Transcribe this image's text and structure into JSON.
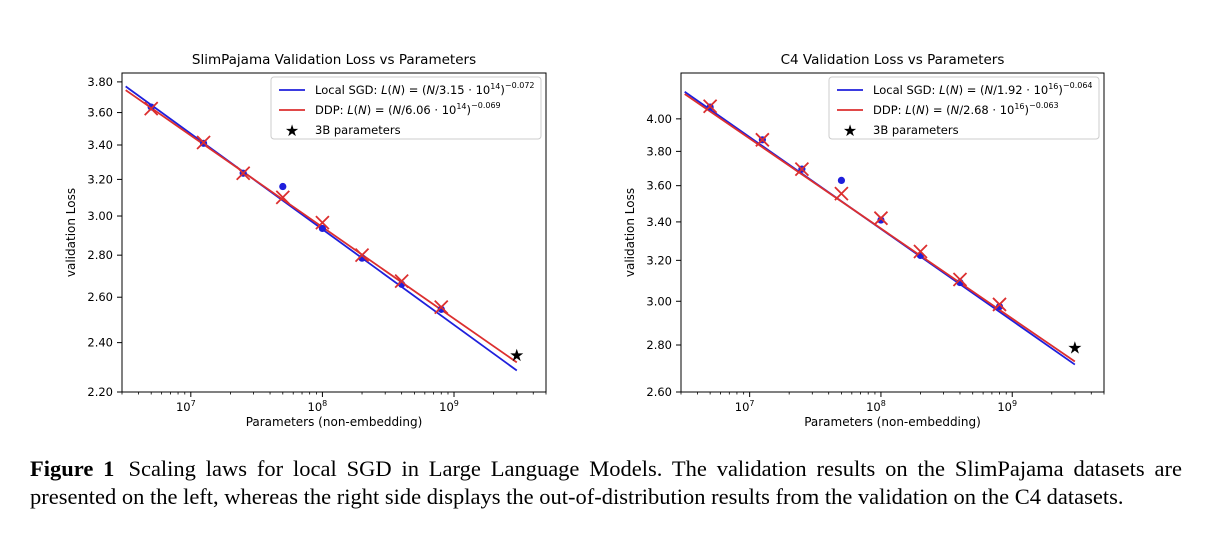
{
  "chart_data": [
    {
      "type": "line",
      "title": "SlimPajama Validation Loss vs Parameters",
      "xlabel": "Parameters (non-embedding)",
      "ylabel": "validation Loss",
      "xscale": "log",
      "yscale": "log",
      "xlim": [
        3000000,
        5000000000
      ],
      "ylim": [
        2.2,
        3.86
      ],
      "x_ticks": [
        10000000,
        100000000,
        1000000000
      ],
      "x_tick_labels": [
        {
          "base": "10",
          "exp": "7"
        },
        {
          "base": "10",
          "exp": "8"
        },
        {
          "base": "10",
          "exp": "9"
        }
      ],
      "y_ticks": [
        2.2,
        2.4,
        2.6,
        2.8,
        3.0,
        3.2,
        3.4,
        3.6,
        3.8
      ],
      "y_tick_labels": [
        "2.20",
        "2.40",
        "2.60",
        "2.80",
        "3.00",
        "3.20",
        "3.40",
        "3.60",
        "3.80"
      ],
      "grid": false,
      "legend_position": "top-right",
      "fits": [
        {
          "name": "Local SGD",
          "color": "#1f1fdc",
          "x_range": [
            3200000,
            3000000000
          ],
          "y_range": [
            3.77,
            2.285
          ]
        },
        {
          "name": "DDP",
          "color": "#dc2f2f",
          "x_range": [
            3200000,
            3000000000
          ],
          "y_range": [
            3.745,
            2.318
          ]
        }
      ],
      "series": [
        {
          "name": "Local SGD",
          "marker": "dot",
          "color": "#1f1fdc",
          "x": [
            5000000,
            12500000,
            25000000,
            50000000,
            100000000,
            200000000,
            400000000,
            800000000
          ],
          "y": [
            3.635,
            3.41,
            3.235,
            3.16,
            2.935,
            2.785,
            2.66,
            2.545
          ]
        },
        {
          "name": "DDP",
          "marker": "x",
          "color": "#dc2f2f",
          "x": [
            5000000,
            12500000,
            25000000,
            50000000,
            100000000,
            200000000,
            400000000,
            800000000
          ],
          "y": [
            3.625,
            3.415,
            3.235,
            3.1,
            2.965,
            2.8,
            2.675,
            2.555
          ]
        },
        {
          "name": "3B parameters",
          "marker": "star",
          "color": "#1f1fdc",
          "x": [
            3000000000
          ],
          "y": [
            2.348
          ]
        }
      ],
      "legend": [
        {
          "type": "line",
          "color": "#1f1fdc",
          "text": "Local SGD: ",
          "eq": {
            "pre": "(",
            "var": "N",
            "mid": "/3.15 · 10",
            "exp1": "14",
            "close": ")",
            "exp2": "−0.072"
          }
        },
        {
          "type": "line",
          "color": "#dc2f2f",
          "text": "DDP: ",
          "eq": {
            "pre": "(",
            "var": "N",
            "mid": "/6.06 · 10",
            "exp1": "14",
            "close": ")",
            "exp2": "−0.069"
          }
        },
        {
          "type": "star",
          "color": "#1f1fdc",
          "text": "3B parameters"
        }
      ]
    },
    {
      "type": "line",
      "title": "C4 Validation Loss vs Parameters",
      "xlabel": "Parameters (non-embedding)",
      "ylabel": "validation Loss",
      "xscale": "log",
      "yscale": "log",
      "xlim": [
        3000000,
        5000000000
      ],
      "ylim": [
        2.6,
        4.3
      ],
      "x_ticks": [
        10000000,
        100000000,
        1000000000
      ],
      "x_tick_labels": [
        {
          "base": "10",
          "exp": "7"
        },
        {
          "base": "10",
          "exp": "8"
        },
        {
          "base": "10",
          "exp": "9"
        }
      ],
      "y_ticks": [
        2.6,
        2.8,
        3.0,
        3.2,
        3.4,
        3.6,
        3.8,
        4.0
      ],
      "y_tick_labels": [
        "2.60",
        "2.80",
        "3.00",
        "3.20",
        "3.40",
        "3.60",
        "3.80",
        "4.00"
      ],
      "grid": false,
      "legend_position": "top-right",
      "fits": [
        {
          "name": "Local SGD",
          "color": "#1f1fdc",
          "x_range": [
            3200000,
            3000000000
          ],
          "y_range": [
            4.175,
            2.715
          ]
        },
        {
          "name": "DDP",
          "color": "#dc2f2f",
          "x_range": [
            3200000,
            3000000000
          ],
          "y_range": [
            4.16,
            2.728
          ]
        }
      ],
      "series": [
        {
          "name": "Local SGD",
          "marker": "dot",
          "color": "#1f1fdc",
          "x": [
            5000000,
            12500000,
            25000000,
            50000000,
            100000000,
            200000000,
            400000000,
            800000000
          ],
          "y": [
            4.075,
            3.87,
            3.695,
            3.63,
            3.41,
            3.225,
            3.09,
            2.975
          ]
        },
        {
          "name": "DDP",
          "marker": "x",
          "color": "#dc2f2f",
          "x": [
            5000000,
            12500000,
            25000000,
            50000000,
            100000000,
            200000000,
            400000000,
            800000000
          ],
          "y": [
            4.08,
            3.87,
            3.695,
            3.555,
            3.42,
            3.245,
            3.105,
            2.985
          ]
        },
        {
          "name": "3B parameters",
          "marker": "star",
          "color": "#1f1fdc",
          "x": [
            3000000000
          ],
          "y": [
            2.79
          ]
        }
      ],
      "legend": [
        {
          "type": "line",
          "color": "#1f1fdc",
          "text": "Local SGD: ",
          "eq": {
            "pre": "(",
            "var": "N",
            "mid": "/1.92 · 10",
            "exp1": "16",
            "close": ")",
            "exp2": "−0.064"
          }
        },
        {
          "type": "line",
          "color": "#dc2f2f",
          "text": "DDP: ",
          "eq": {
            "pre": "(",
            "var": "N",
            "mid": "/2.68 · 10",
            "exp1": "16",
            "close": ")",
            "exp2": "−0.063"
          }
        },
        {
          "type": "star",
          "color": "#1f1fdc",
          "text": "3B parameters"
        }
      ]
    }
  ],
  "caption": {
    "label": "Figure 1",
    "text": "Scaling laws for local SGD in Large Language Models. The validation results on the SlimPajama datasets are presented on the left, whereas the right side displays the out-of-distribution results from the validation on the C4 datasets."
  }
}
